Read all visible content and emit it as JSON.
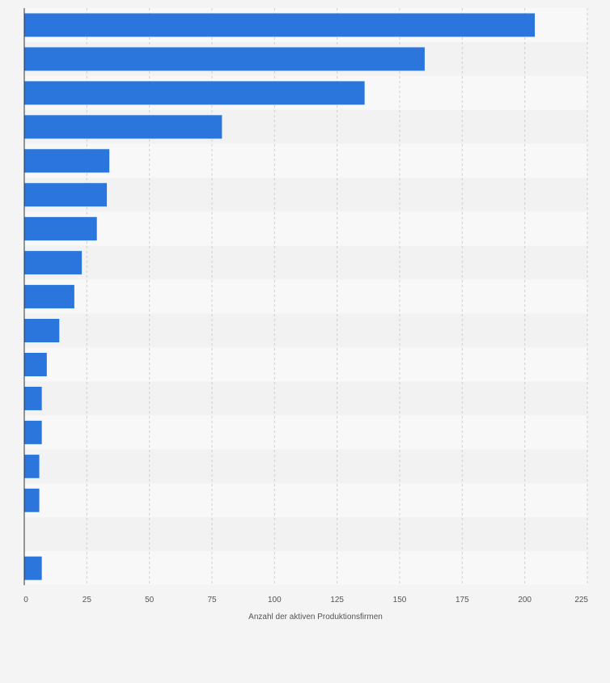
{
  "chart_data": {
    "type": "bar",
    "orientation": "horizontal",
    "title": "",
    "xlabel": "Anzahl der aktiven Produktionsfirmen",
    "ylabel": "",
    "xlim": [
      0,
      225
    ],
    "x_ticks": [
      0,
      25,
      50,
      75,
      100,
      125,
      150,
      175,
      200,
      225
    ],
    "x_tick_labels": [
      "0",
      "25",
      "50",
      "75",
      "100",
      "125",
      "150",
      "175",
      "200",
      "225"
    ],
    "categories": [
      "",
      "",
      "",
      "",
      "",
      "",
      "",
      "",
      "",
      "",
      "",
      "",
      "",
      "",
      "",
      "",
      ""
    ],
    "values": [
      204,
      160,
      136,
      79,
      34,
      33,
      29,
      23,
      20,
      14,
      9,
      7,
      7,
      6,
      6,
      null,
      7
    ],
    "grid": true,
    "legend": "none",
    "colors": {
      "bar": "#2a76dd",
      "background": "#f4f4f4",
      "band_light": "#f8f8f8",
      "band_dark": "#f2f2f2",
      "gridline": "#cfcfcf",
      "tick_text": "#555555",
      "axis_line": "#333333"
    }
  }
}
